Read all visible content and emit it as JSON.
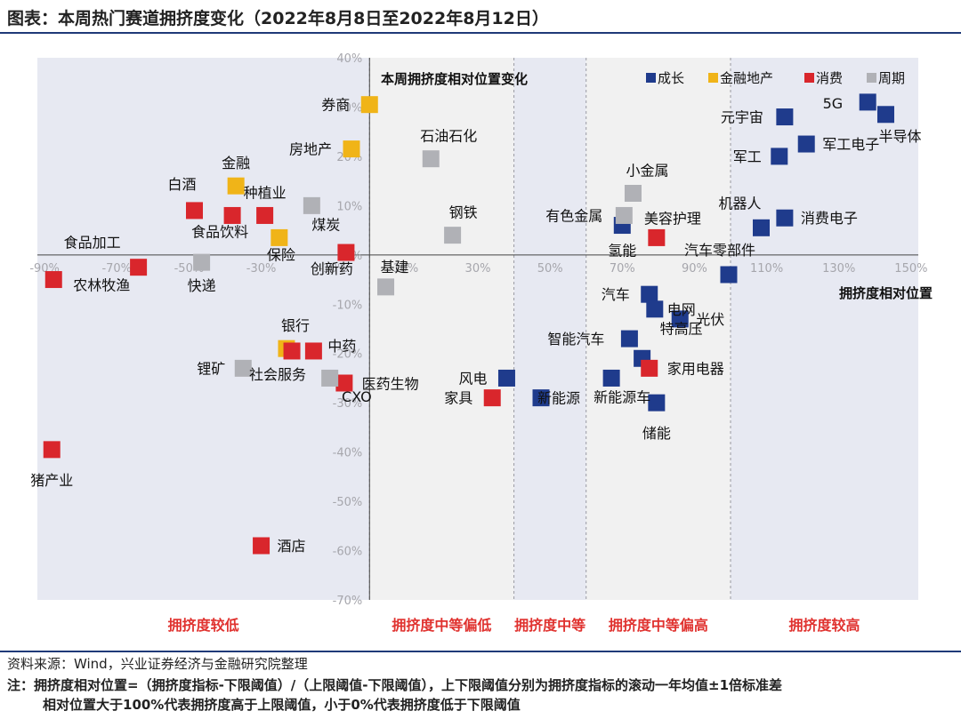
{
  "title": "图表：本周热门赛道拥挤度变化（2022年8月8日至2022年8月12日）",
  "source": "资料来源：Wind，兴业证券经济与金融研究院整理",
  "note_line1": "注：拥挤度相对位置=（拥挤度指标-下限阈值）/（上限阈值-下限阈值），上下限阈值分别为拥挤度指标的滚动一年均值±1倍标准差",
  "note_line2": "相对位置大于100%代表拥挤度高于上限阈值，小于0%代表拥挤度低于下限阈值",
  "chart_data": {
    "type": "scatter",
    "title": "本周拥挤度相对位置变化",
    "xlabel": "拥挤度相对位置",
    "ylabel": "",
    "xlim": [
      -92,
      152
    ],
    "ylim": [
      -70,
      40
    ],
    "x_ticks": [
      -90,
      -70,
      -50,
      -30,
      -10,
      10,
      30,
      50,
      70,
      90,
      110,
      130,
      150
    ],
    "x_tick_labels": [
      "-90%",
      "-70%",
      "-50%",
      "-30%",
      "-10%",
      "10%",
      "30%",
      "50%",
      "70%",
      "90%",
      "110%",
      "130%",
      "150%"
    ],
    "y_ticks": [
      40,
      30,
      20,
      10,
      0,
      -10,
      -20,
      -30,
      -40,
      -50,
      -60,
      -70
    ],
    "y_tick_labels": [
      "40%",
      "30%",
      "20%",
      "10%",
      "0%",
      "-10%",
      "-20%",
      "-30%",
      "-40%",
      "-50%",
      "-60%",
      "-70%"
    ],
    "zones": [
      {
        "label": "拥挤度较低",
        "from": -92,
        "to": 0,
        "shade": "#e7e9f2"
      },
      {
        "label": "拥挤度中等偏低",
        "from": 0,
        "to": 40,
        "shade": "#f1f1f1"
      },
      {
        "label": "拥挤度中等",
        "from": 40,
        "to": 60,
        "shade": "#e7e9f2"
      },
      {
        "label": "拥挤度中等偏高",
        "from": 60,
        "to": 100,
        "shade": "#f1f1f1"
      },
      {
        "label": "拥挤度较高",
        "from": 100,
        "to": 152,
        "shade": "#e7e9f2"
      }
    ],
    "zone_label_color": "#e0322f",
    "legend_position": "top-right",
    "series": [
      {
        "name": "成长",
        "color": "#1f3b8c",
        "points": [
          {
            "label": "5G",
            "x": 138,
            "y": 31
          },
          {
            "label": "半导体",
            "x": 143,
            "y": 28.5
          },
          {
            "label": "元宇宙",
            "x": 115,
            "y": 28
          },
          {
            "label": "军工电子",
            "x": 121,
            "y": 22.5
          },
          {
            "label": "军工",
            "x": 113.5,
            "y": 20
          },
          {
            "label": "机器人",
            "x": 108.5,
            "y": 5.5
          },
          {
            "label": "消费电子",
            "x": 115,
            "y": 7.5
          },
          {
            "label": "氢能",
            "x": 70,
            "y": 6
          },
          {
            "label": "汽车零部件",
            "x": 99.5,
            "y": -4
          },
          {
            "label": "汽车",
            "x": 77.5,
            "y": -8
          },
          {
            "label": "电网",
            "x": 79,
            "y": -11
          },
          {
            "label": "光伏",
            "x": 86,
            "y": -13
          },
          {
            "label": "智能汽车",
            "x": 72,
            "y": -17
          },
          {
            "label": "特高压",
            "x": 75.5,
            "y": -21
          },
          {
            "label": "风电",
            "x": 38,
            "y": -25
          },
          {
            "label": "新能源",
            "x": 47.5,
            "y": -29
          },
          {
            "label": "新能源车",
            "x": 67,
            "y": -25
          },
          {
            "label": "储能",
            "x": 79.5,
            "y": -30
          }
        ]
      },
      {
        "name": "金融地产",
        "color": "#f0b418",
        "points": [
          {
            "label": "券商",
            "x": 0,
            "y": 30.5
          },
          {
            "label": "房地产",
            "x": -5,
            "y": 21.5
          },
          {
            "label": "金融",
            "x": -37,
            "y": 14
          },
          {
            "label": "保险",
            "x": -25,
            "y": 3.5
          },
          {
            "label": "银行",
            "x": -23,
            "y": -19
          }
        ]
      },
      {
        "name": "消费",
        "color": "#d9262c",
        "points": [
          {
            "label": "白酒",
            "x": -48.5,
            "y": 9
          },
          {
            "label": "种植业",
            "x": -29,
            "y": 8
          },
          {
            "label": "食品饮料",
            "x": -38,
            "y": 8
          },
          {
            "label": "创新药",
            "x": -6.5,
            "y": 0.5
          },
          {
            "label": "食品加工",
            "x": -64,
            "y": -2.5
          },
          {
            "label": "农林牧渔",
            "x": -87.5,
            "y": -5
          },
          {
            "label": "中药",
            "x": -15.5,
            "y": -19.5
          },
          {
            "label": "社会服务",
            "x": -21.5,
            "y": -19.5
          },
          {
            "label": "CXO",
            "x": -7,
            "y": -26
          },
          {
            "label": "美容护理",
            "x": 79.5,
            "y": 3.5
          },
          {
            "label": "家用电器",
            "x": 77.5,
            "y": -23
          },
          {
            "label": "家具",
            "x": 34,
            "y": -29
          },
          {
            "label": "猪产业",
            "x": -88,
            "y": -39.5
          },
          {
            "label": "酒店",
            "x": -30,
            "y": -59
          }
        ]
      },
      {
        "name": "周期",
        "color": "#b0b1b6",
        "points": [
          {
            "label": "石油石化",
            "x": 17,
            "y": 19.5
          },
          {
            "label": "小金属",
            "x": 73,
            "y": 12.5
          },
          {
            "label": "有色金属",
            "x": 70.5,
            "y": 8
          },
          {
            "label": "煤炭",
            "x": -16,
            "y": 10
          },
          {
            "label": "钢铁",
            "x": 23,
            "y": 4
          },
          {
            "label": "快递",
            "x": -46.5,
            "y": -1.5
          },
          {
            "label": "基建",
            "x": 4.5,
            "y": -6.5
          },
          {
            "label": "锂矿",
            "x": -35,
            "y": -23
          },
          {
            "label": "医药生物",
            "x": -11,
            "y": -25
          }
        ]
      }
    ]
  }
}
